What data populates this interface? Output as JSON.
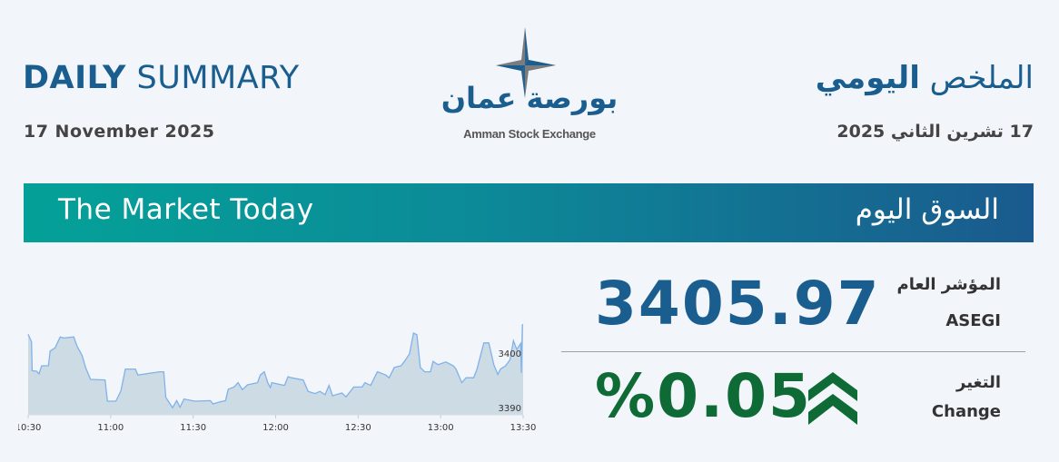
{
  "header": {
    "title_en_bold": "DAILY",
    "title_en_light": "SUMMARY",
    "date_en": "17 November 2025",
    "title_ar_light": "الملخص",
    "title_ar_bold": "اليومي",
    "date_ar": "17 تشرين الثاني 2025"
  },
  "logo": {
    "arabic": "بورصة عمان",
    "english": "Amman Stock Exchange"
  },
  "banner": {
    "title_en": "The Market Today",
    "title_ar": "السوق اليوم"
  },
  "index": {
    "value": "3405.97",
    "label_ar": "المؤشر العام",
    "label_en": "ASEGI"
  },
  "change": {
    "value": "%0.05",
    "direction": "up",
    "icon": "double-chevron-up-icon",
    "label_ar": "التغير",
    "label_en": "Change"
  },
  "colors": {
    "primary": "#1a5d8f",
    "positive": "#0f6b35",
    "banner_start": "#04a198",
    "banner_end": "#1a5a8e",
    "line": "#7fb2ea",
    "area": "#cddbe5"
  },
  "chart_data": {
    "type": "area",
    "title": "",
    "xlabel": "",
    "ylabel": "",
    "x_ticks": [
      "10:30",
      "11:00",
      "11:30",
      "12:00",
      "12:30",
      "13:00",
      "13:30"
    ],
    "y_ticks": [
      3390,
      3400
    ],
    "ylim": [
      3389,
      3406
    ],
    "xlim": [
      "10:30",
      "13:30"
    ],
    "y_axis_position": "right",
    "grid": false,
    "x": [
      "10:30:00",
      "10:31:14",
      "10:31:28",
      "10:33:04",
      "10:33:56",
      "10:34:55",
      "10:37:22",
      "10:37:59",
      "10:39:49",
      "10:41:39",
      "10:42:53",
      "10:46:34",
      "10:47:47",
      "10:49:38",
      "10:50:52",
      "10:52:42",
      "10:57:59",
      "10:58:50",
      "11:01:54",
      "11:03:44",
      "11:05:20",
      "11:09:01",
      "11:09:53",
      "11:17:51",
      "11:19:18",
      "11:20:04",
      "11:22:31",
      "11:24:00",
      "11:25:13",
      "11:26:41",
      "11:29:30",
      "11:30:44",
      "11:36:16",
      "11:37:14",
      "11:39:56",
      "11:41:47",
      "11:42:46",
      "11:44:50",
      "11:46:19",
      "11:47:55",
      "11:49:45",
      "11:53:26",
      "11:54:25",
      "11:55:53",
      "11:57:07",
      "11:58:06",
      "11:58:35",
      "12:03:15",
      "12:04:29",
      "12:05:43",
      "12:10:00",
      "12:11:50",
      "12:14:18",
      "12:16:08",
      "12:17:58",
      "12:19:26",
      "12:20:40",
      "12:24:06",
      "12:25:35",
      "12:28:25",
      "12:31:29",
      "12:32:28",
      "12:34:33",
      "12:37:00",
      "12:40:04",
      "12:41:18",
      "12:43:08",
      "12:45:35",
      "12:46:49",
      "12:48:40",
      "12:50:08",
      "12:51:22",
      "12:52:36",
      "12:54:11",
      "12:56:16",
      "12:57:14",
      "12:59:05",
      "13:01:54",
      "13:04:36",
      "13:05:35",
      "13:07:40",
      "13:09:16",
      "13:12:00",
      "13:13:14",
      "13:15:41",
      "13:17:30",
      "13:19:20",
      "13:20:48",
      "13:21:47",
      "13:23:37",
      "13:25:13",
      "13:26:27",
      "13:27:41",
      "13:29:09",
      "13:29:20",
      "13:29:45",
      "13:30:00"
    ],
    "values": [
      3403.8,
      3402.4,
      3397.1,
      3397.0,
      3396.5,
      3398.0,
      3398.0,
      3400.7,
      3401.3,
      3403.3,
      3403.1,
      3403.3,
      3401.6,
      3399.9,
      3397.7,
      3395.5,
      3395.4,
      3391.5,
      3391.5,
      3393.4,
      3397.4,
      3397.4,
      3396.3,
      3396.9,
      3396.9,
      3392.2,
      3390.3,
      3391.6,
      3390.4,
      3391.9,
      3391.6,
      3391.5,
      3391.6,
      3391.0,
      3391.4,
      3391.6,
      3393.7,
      3394.1,
      3394.9,
      3393.6,
      3394.5,
      3394.9,
      3396.3,
      3396.9,
      3394.9,
      3394.0,
      3394.9,
      3394.4,
      3396.0,
      3395.8,
      3395.4,
      3393.3,
      3392.9,
      3393.3,
      3392.7,
      3394.4,
      3392.5,
      3393.0,
      3392.3,
      3394.1,
      3394.1,
      3394.9,
      3394.4,
      3396.9,
      3396.3,
      3395.8,
      3397.7,
      3398.0,
      3398.8,
      3400.2,
      3404.0,
      3403.7,
      3397.7,
      3396.9,
      3396.9,
      3398.8,
      3398.2,
      3398.7,
      3398.0,
      3397.4,
      3394.9,
      3395.8,
      3395.8,
      3397.4,
      3402.2,
      3402.2,
      3398.2,
      3396.4,
      3397.4,
      3398.0,
      3399.1,
      3402.6,
      3401.0,
      3402.1,
      3396.7,
      3405.5,
      3405.6
    ]
  }
}
